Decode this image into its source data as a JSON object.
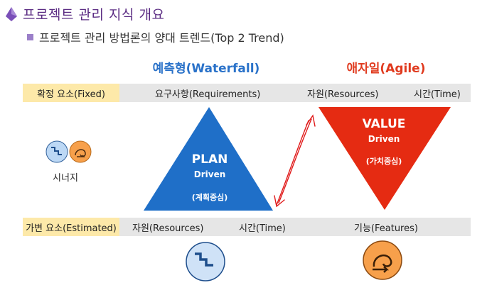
{
  "header": {
    "title": "프로젝트 관리 지식 개요",
    "subtitle": "프로젝트 관리 방법론의 양대 트렌드(Top 2 Trend)"
  },
  "columns": {
    "waterfall_heading": "예측형(Waterfall)",
    "agile_heading": "애자일(Agile)"
  },
  "fixed_row": {
    "tag": "확정 요소(Fixed)",
    "items": [
      "요구사항(Requirements)",
      "자원(Resources)",
      "시간(Time)"
    ]
  },
  "estimated_row": {
    "tag": "가변 요소(Estimated)",
    "items": [
      "자원(Resources)",
      "시간(Time)",
      "기능(Features)"
    ]
  },
  "plan_triangle": {
    "title": "PLAN",
    "subtitle": "Driven",
    "korean": "(계획중심)"
  },
  "value_triangle": {
    "title": "VALUE",
    "subtitle": "Driven",
    "korean": "(가치중심)"
  },
  "synergy": {
    "label": "시너지"
  },
  "colors": {
    "title_purple": "#5b2c83",
    "waterfall_blue": "#1f6fc8",
    "agile_red": "#e52b12",
    "fixed_tag_yellow": "#fde9a9",
    "band_gray": "#e6e6e6",
    "icon_blue": "#bcd8f5",
    "icon_orange": "#f7a04b"
  },
  "icons": [
    "title-bullet-icon",
    "stairs-icon",
    "loop-arrow-icon",
    "double-arrow-icon"
  ]
}
